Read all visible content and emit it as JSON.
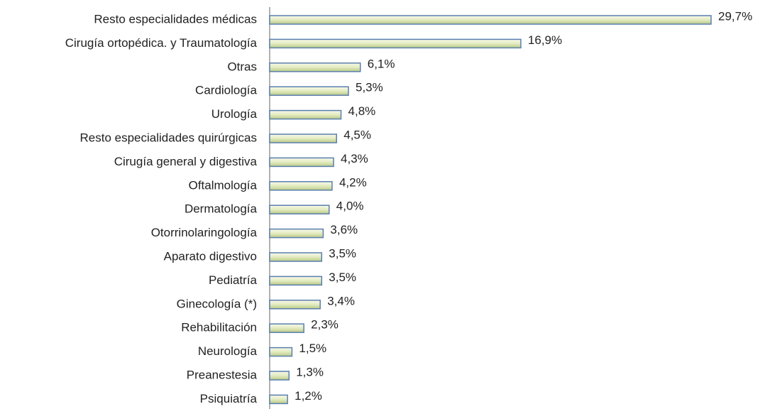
{
  "chart_data": {
    "type": "bar",
    "orientation": "horizontal",
    "categories": [
      "Resto especialidades médicas",
      "Cirugía ortopédica. y Traumatología",
      "Otras",
      "Cardiología",
      "Urología",
      "Resto especialidades quirúrgicas",
      "Cirugía general y digestiva",
      "Oftalmología",
      "Dermatología",
      "Otorrinolaringología",
      "Aparato digestivo",
      "Pediatría",
      "Ginecología (*)",
      "Rehabilitación",
      "Neurología",
      "Preanestesia",
      "Psiquiatría"
    ],
    "values": [
      29.7,
      16.9,
      6.1,
      5.3,
      4.8,
      4.5,
      4.3,
      4.2,
      4.0,
      3.6,
      3.5,
      3.5,
      3.4,
      2.3,
      1.5,
      1.3,
      1.2
    ],
    "value_labels": [
      "29,7%",
      "16,9%",
      "6,1%",
      "5,3%",
      "4,8%",
      "4,5%",
      "4,3%",
      "4,2%",
      "4,0%",
      "3,6%",
      "3,5%",
      "3,5%",
      "3,4%",
      "2,3%",
      "1,5%",
      "1,3%",
      "1,2%"
    ],
    "color": "#d6e2a8"
  }
}
